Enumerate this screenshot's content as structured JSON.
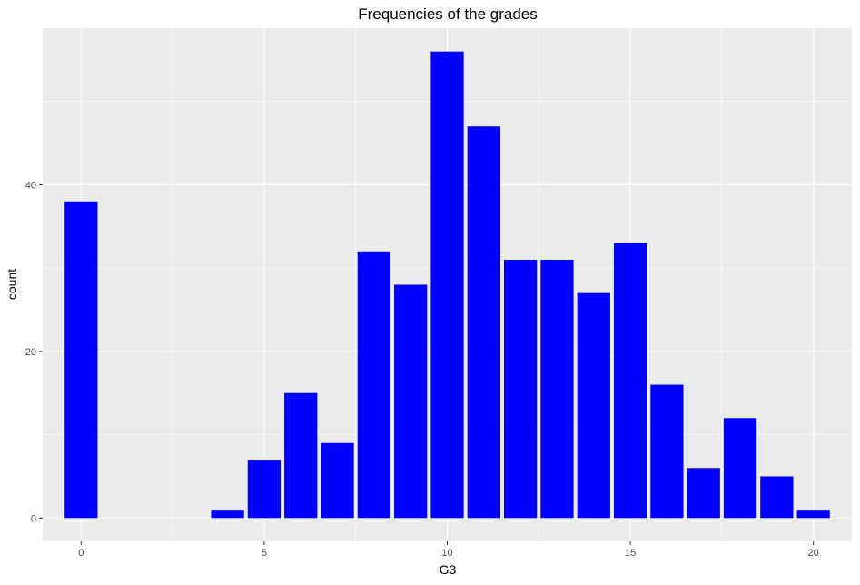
{
  "chart_data": {
    "type": "bar",
    "title": "Frequencies of the grades",
    "xlabel": "G3",
    "ylabel": "count",
    "x": [
      0,
      4,
      5,
      6,
      7,
      8,
      9,
      10,
      11,
      12,
      13,
      14,
      15,
      16,
      17,
      18,
      19,
      20
    ],
    "values": [
      38,
      1,
      7,
      15,
      9,
      32,
      28,
      56,
      47,
      31,
      31,
      27,
      33,
      16,
      6,
      12,
      5,
      1
    ],
    "xlim": [
      -1.05,
      21.05
    ],
    "ylim": [
      -2.8,
      58.8
    ],
    "x_ticks": [
      0,
      5,
      10,
      15,
      20
    ],
    "y_ticks": [
      0,
      20,
      40
    ],
    "grid": true,
    "bar_color": "#0000FF",
    "panel_background": "#EBEBEB",
    "grid_color": "#FFFFFF"
  }
}
